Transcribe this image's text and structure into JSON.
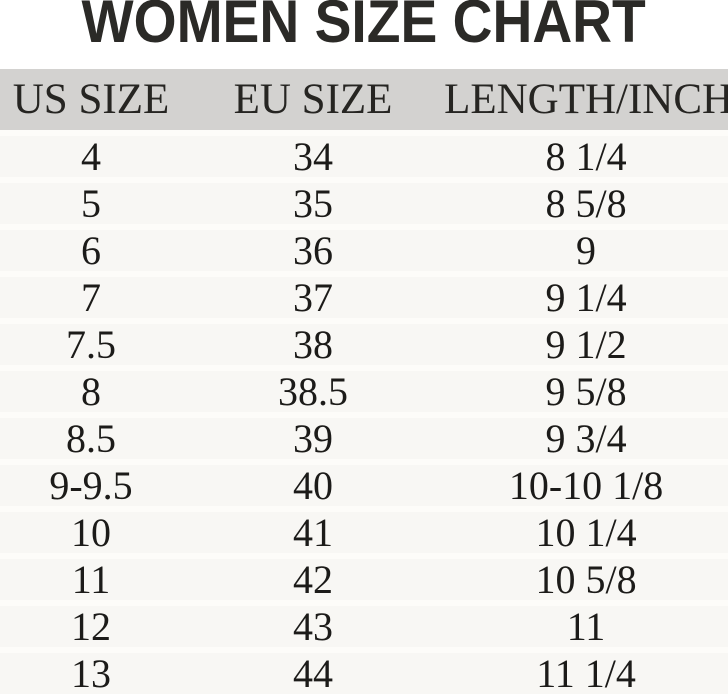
{
  "title": "WOMEN SIZE CHART",
  "chart_data": {
    "type": "table",
    "title": "WOMEN SIZE CHART",
    "columns": [
      "US SIZE",
      "EU SIZE",
      "LENGTH/INCH"
    ],
    "rows": [
      [
        "4",
        "34",
        "8 1/4"
      ],
      [
        "5",
        "35",
        "8 5/8"
      ],
      [
        "6",
        "36",
        "9"
      ],
      [
        "7",
        "37",
        "9 1/4"
      ],
      [
        "7.5",
        "38",
        "9 1/2"
      ],
      [
        "8",
        "38.5",
        "9 5/8"
      ],
      [
        "8.5",
        "39",
        "9 3/4"
      ],
      [
        "9-9.5",
        "40",
        "10-10 1/8"
      ],
      [
        "10",
        "41",
        "10 1/4"
      ],
      [
        "11",
        "42",
        "10 5/8"
      ],
      [
        "12",
        "43",
        "11"
      ],
      [
        "13",
        "44",
        "11 1/4"
      ]
    ],
    "layout": {
      "header_background": "#d3d2d0",
      "row_background": "#f8f7f4",
      "row_separator": "#fdfcf9",
      "grid": "horizontal-bands",
      "column_alignment": "center"
    }
  },
  "colors": {
    "page_bg": "#ffffff",
    "header_row_bg": "#d3d2d0",
    "row_bg": "#f8f7f4",
    "row_separator": "#fdfcf9",
    "title_text": "#2b2a27",
    "header_text": "#262522",
    "cell_text": "#1c1b19"
  }
}
